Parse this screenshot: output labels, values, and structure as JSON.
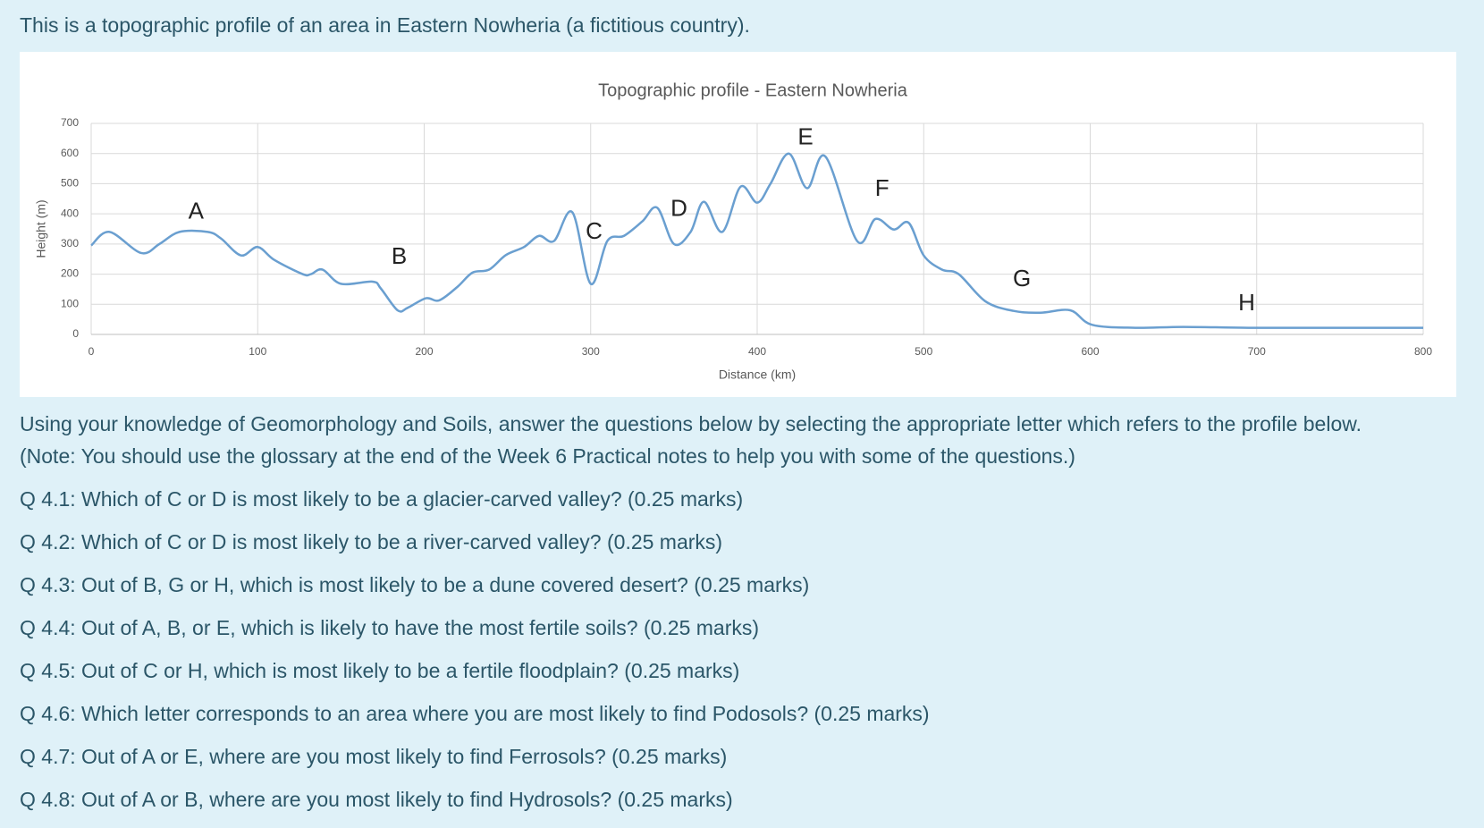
{
  "intro": "This is a topographic profile of an area in Eastern Nowheria (a fictitious country).",
  "chart_data": {
    "type": "line",
    "title": "Topographic profile - Eastern Nowheria",
    "x_label": "Distance (km)",
    "y_label": "Height (m)",
    "x": [
      0,
      11,
      30,
      41,
      53,
      70,
      78,
      90,
      100,
      110,
      127,
      132,
      139,
      150,
      169,
      174,
      184,
      190,
      201,
      209,
      220,
      229,
      239,
      249,
      260,
      269,
      278,
      289,
      300,
      310,
      320,
      331,
      340,
      350,
      360,
      368,
      379,
      390,
      400,
      408,
      419,
      430,
      441,
      460,
      471,
      482,
      491,
      500,
      511,
      521,
      537,
      554,
      570,
      588,
      601,
      627,
      656,
      695,
      741,
      800
    ],
    "series": [
      {
        "name": "Height",
        "color": "#6a9fd0",
        "values": [
          295,
          340,
          270,
          300,
          340,
          340,
          318,
          262,
          290,
          247,
          200,
          200,
          215,
          168,
          175,
          152,
          80,
          88,
          120,
          113,
          158,
          205,
          215,
          263,
          290,
          327,
          310,
          405,
          168,
          310,
          327,
          375,
          420,
          300,
          340,
          440,
          340,
          490,
          437,
          500,
          600,
          485,
          590,
          310,
          383,
          348,
          370,
          262,
          215,
          200,
          110,
          78,
          72,
          80,
          32,
          22,
          25,
          22,
          22,
          22
        ]
      }
    ],
    "annotations": [
      {
        "text": "A",
        "x": 63,
        "y": 405
      },
      {
        "text": "B",
        "x": 185,
        "y": 255
      },
      {
        "text": "C",
        "x": 302,
        "y": 338
      },
      {
        "text": "D",
        "x": 353,
        "y": 413
      },
      {
        "text": "E",
        "x": 429,
        "y": 650
      },
      {
        "text": "F",
        "x": 475,
        "y": 480
      },
      {
        "text": "G",
        "x": 559,
        "y": 180
      },
      {
        "text": "H",
        "x": 694,
        "y": 100
      }
    ],
    "xlim": [
      0,
      800
    ],
    "xticks": [
      0,
      100,
      200,
      300,
      400,
      500,
      600,
      700,
      800
    ],
    "ylim": [
      0,
      700
    ],
    "yticks": [
      0,
      100,
      200,
      300,
      400,
      500,
      600,
      700
    ],
    "grid": true
  },
  "instructions": [
    "Using your knowledge of Geomorphology and Soils, answer the questions below by selecting the appropriate letter which refers to the profile below.",
    "(Note: You should use the glossary at the end of the Week 6 Practical notes to help you with some of the questions.)"
  ],
  "questions": [
    "Q 4.1: Which of C or D is most likely to be a glacier-carved valley? (0.25 marks)",
    "Q 4.2: Which of C or D is most likely to be a river-carved valley? (0.25 marks)",
    "Q 4.3: Out of B, G or H, which is most likely to be a dune covered desert? (0.25 marks)",
    "Q 4.4: Out of A, B, or E, which is likely to have the most fertile soils? (0.25 marks)",
    "Q 4.5: Out of C or H, which is most likely to be a fertile floodplain? (0.25 marks)",
    "Q 4.6: Which letter corresponds to an area where you are most likely to find Podosols? (0.25 marks)",
    "Q 4.7: Out of A or E, where are you most likely to find Ferrosols? (0.25 marks)",
    "Q 4.8: Out of A or B, where are you most likely to find Hydrosols? (0.25 marks)"
  ]
}
